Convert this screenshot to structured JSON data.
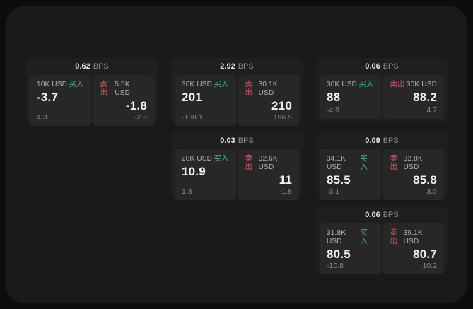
{
  "labels": {
    "buy": "买入",
    "sell": "卖出",
    "bps_suffix": "BPS"
  },
  "colors": {
    "buy_green": "#4db37a",
    "sell_red": "#d15864",
    "panel_bg": "#1a1a1a",
    "card_bg": "#1f1f1f",
    "tile_bg": "#272727"
  },
  "cards": [
    {
      "bps": "0.62",
      "buy": {
        "size": "10K USD",
        "value": "-3.7",
        "delta": "4.3"
      },
      "sell": {
        "size": "5.5K USD",
        "value": "-1.8",
        "delta": "-2.6"
      }
    },
    {
      "bps": "2.92",
      "buy": {
        "size": "30K USD",
        "value": "201",
        "delta": "-188.1"
      },
      "sell": {
        "size": "30.1K USD",
        "value": "210",
        "delta": "196.5"
      }
    },
    {
      "bps": "0.06",
      "buy": {
        "size": "30K USD",
        "value": "88",
        "delta": "-4.9"
      },
      "sell": {
        "size": "30K USD",
        "value": "88.2",
        "delta": "4.7"
      }
    },
    {
      "bps": "0.03",
      "buy": {
        "size": "28K USD",
        "value": "10.9",
        "delta": "1.3"
      },
      "sell": {
        "size": "32.6K USD",
        "value": "11",
        "delta": "-1.8"
      }
    },
    {
      "bps": "0.09",
      "buy": {
        "size": "34.1K USD",
        "value": "85.5",
        "delta": "-3.1"
      },
      "sell": {
        "size": "32.8K USD",
        "value": "85.8",
        "delta": "3.0"
      }
    },
    {
      "bps": "0.06",
      "buy": {
        "size": "31.8K USD",
        "value": "80.5",
        "delta": "-10.8"
      },
      "sell": {
        "size": "39.1K USD",
        "value": "80.7",
        "delta": "10.2"
      }
    }
  ]
}
